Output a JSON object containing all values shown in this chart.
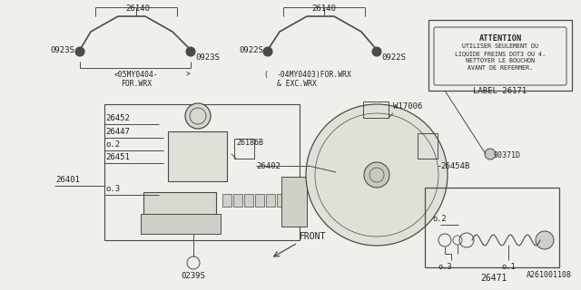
{
  "bg_color": "#f0f0eb",
  "line_color": "#4a4a4a",
  "text_color": "#222222",
  "attention_text_lines": [
    "ATTENTION",
    "UTILISER SEULEMENT DU",
    "LIQUIDE FREINS DOT3 OU 4.",
    "NETTOYER LE BOUCHON",
    "AVANT DE REFERMER."
  ],
  "attention_label": "LABEL 26171",
  "diagram_id": "A261001108"
}
